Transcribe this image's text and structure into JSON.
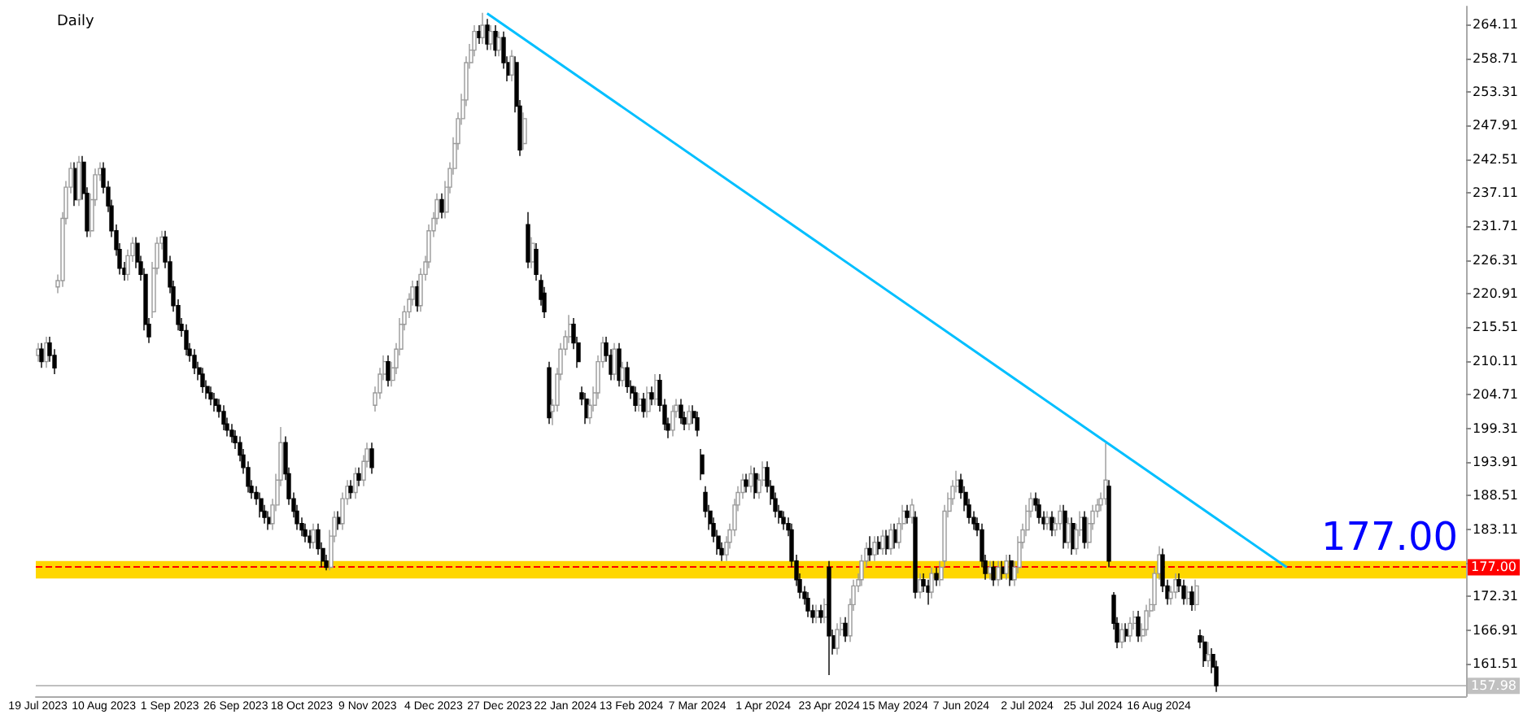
{
  "chart_data": {
    "type": "candlestick",
    "title": "Daily",
    "categories": [
      "19 Jul 2023",
      null,
      null,
      null,
      null,
      null,
      null,
      null,
      null,
      null,
      null,
      null,
      null,
      null,
      null,
      null,
      "10 Aug 2023",
      null,
      null,
      null,
      null,
      null,
      null,
      null,
      null,
      null,
      null,
      null,
      null,
      null,
      null,
      null,
      "1 Sep 2023",
      null,
      null,
      null,
      null,
      null,
      null,
      null,
      null,
      null,
      null,
      null,
      null,
      null,
      null,
      null,
      "26 Sep 2023",
      null,
      null,
      null,
      null,
      null,
      null,
      null,
      null,
      null,
      null,
      null,
      null,
      null,
      null,
      null,
      "18 Oct 2023",
      null,
      null,
      null,
      null,
      null,
      null,
      null,
      null,
      null,
      null,
      null,
      null,
      null,
      null,
      null,
      "9 Nov 2023",
      null,
      null,
      null,
      null,
      null,
      null,
      null,
      null,
      null,
      null,
      null,
      null,
      null,
      null,
      null,
      "4 Dec 2023",
      null,
      null,
      null,
      null,
      null,
      null,
      null,
      null,
      null,
      null,
      null,
      null,
      null,
      null,
      null,
      "27 Dec 2023",
      null,
      null,
      null,
      null,
      null,
      null,
      null,
      null,
      null,
      null,
      null,
      null,
      null,
      null,
      null,
      "22 Jan 2024",
      null,
      null,
      null,
      null,
      null,
      null,
      null,
      null,
      null,
      null,
      null,
      null,
      null,
      null,
      null,
      "13 Feb 2024",
      null,
      null,
      null,
      null,
      null,
      null,
      null,
      null,
      null,
      null,
      null,
      null,
      null,
      null,
      null,
      "7 Mar 2024",
      null,
      null,
      null,
      null,
      null,
      null,
      null,
      null,
      null,
      null,
      null,
      null,
      null,
      null,
      null,
      "1 Apr 2024",
      null,
      null,
      null,
      null,
      null,
      null,
      null,
      null,
      null,
      null,
      null,
      null,
      null,
      null,
      null,
      "23 Apr 2024",
      null,
      null,
      null,
      null,
      null,
      null,
      null,
      null,
      null,
      null,
      null,
      null,
      null,
      null,
      null,
      "15 May 2024",
      null,
      null,
      null,
      null,
      null,
      null,
      null,
      null,
      null,
      null,
      null,
      null,
      null,
      null,
      null,
      "7 Jun 2024",
      null,
      null,
      null,
      null,
      null,
      null,
      null,
      null,
      null,
      null,
      null,
      null,
      null,
      null,
      null,
      "2 Jul 2024",
      null,
      null,
      null,
      null,
      null,
      null,
      null,
      null,
      null,
      null,
      null,
      null,
      null,
      null,
      null,
      "25 Jul 2024",
      null,
      null,
      null,
      null,
      null,
      null,
      null,
      null,
      null,
      null,
      null,
      null,
      null,
      null,
      null,
      "16 Aug 2024",
      null,
      null,
      null,
      null,
      null,
      null,
      null,
      null,
      null,
      null,
      null,
      null,
      null,
      null,
      null,
      null,
      null,
      null,
      null,
      null,
      null,
      null,
      null,
      null,
      null,
      null,
      null,
      null,
      null,
      null,
      null,
      null,
      null,
      null,
      null,
      null,
      null,
      null,
      null,
      null,
      null,
      null,
      null,
      null,
      null,
      null,
      null,
      null,
      null,
      null,
      null,
      null,
      null,
      null,
      null,
      null,
      null,
      null,
      null,
      null,
      null,
      null,
      null,
      null,
      null,
      null,
      null,
      null,
      null,
      null,
      null,
      null,
      null,
      null
    ],
    "ohlc": [
      [
        211,
        213,
        210,
        212
      ],
      [
        212,
        213,
        209,
        210
      ],
      [
        210,
        214,
        209,
        213
      ],
      [
        213,
        214,
        210,
        211
      ],
      [
        211,
        212,
        208,
        209
      ],
      [
        222,
        224,
        221,
        223
      ],
      [
        223,
        234,
        222,
        233
      ],
      [
        233,
        239,
        232,
        238
      ],
      [
        238,
        242,
        237,
        241
      ],
      [
        241,
        242,
        235,
        236
      ],
      [
        236,
        243,
        235,
        242
      ],
      [
        242,
        243,
        236,
        237
      ],
      [
        237,
        238,
        230,
        231
      ],
      [
        231,
        237,
        230,
        236
      ],
      [
        236,
        241,
        235,
        240
      ],
      [
        240,
        242,
        239,
        241
      ],
      [
        241,
        242,
        237,
        238
      ],
      [
        238,
        239,
        234,
        235
      ],
      [
        235,
        236,
        230,
        231
      ],
      [
        231,
        232,
        227,
        228
      ],
      [
        228,
        229,
        224,
        225
      ],
      [
        225,
        226,
        223,
        224
      ],
      [
        224,
        228,
        223,
        227
      ],
      [
        227,
        230,
        226,
        229
      ],
      [
        229,
        230,
        225,
        226
      ],
      [
        226,
        227,
        223,
        224
      ],
      [
        224,
        225,
        215,
        216
      ],
      [
        216,
        217,
        213,
        214
      ],
      [
        218,
        226,
        217,
        225
      ],
      [
        225,
        230,
        224,
        229
      ],
      [
        229,
        231,
        228,
        230
      ],
      [
        230,
        231,
        225,
        226
      ],
      [
        226,
        227,
        221,
        222
      ],
      [
        222,
        223,
        218,
        219
      ],
      [
        219,
        220,
        215,
        216
      ],
      [
        216,
        217,
        214,
        215
      ],
      [
        215,
        216,
        211,
        212
      ],
      [
        212,
        213,
        210,
        211
      ],
      [
        211,
        212,
        208,
        209
      ],
      [
        209,
        210,
        207,
        208
      ],
      [
        208,
        209,
        205,
        206
      ],
      [
        206,
        207,
        204,
        205
      ],
      [
        205,
        206,
        203,
        204
      ],
      [
        204,
        205,
        202,
        203
      ],
      [
        203,
        204,
        201,
        202
      ],
      [
        202,
        203,
        199,
        200
      ],
      [
        200,
        201,
        198,
        199
      ],
      [
        199,
        200,
        197,
        198
      ],
      [
        198,
        199,
        196,
        197
      ],
      [
        197,
        198,
        194,
        195
      ],
      [
        195,
        196,
        192,
        193
      ],
      [
        193,
        194,
        189,
        190
      ],
      [
        190,
        191,
        188,
        189
      ],
      [
        189,
        190,
        187,
        188
      ],
      [
        188,
        189,
        185,
        186
      ],
      [
        186,
        187,
        184,
        185
      ],
      [
        185,
        186,
        183,
        184
      ],
      [
        184,
        188,
        183,
        187
      ],
      [
        187,
        192,
        186,
        191
      ],
      [
        191,
        199.5,
        190,
        197
      ],
      [
        197,
        198,
        191,
        192
      ],
      [
        192,
        193,
        187,
        188
      ],
      [
        188,
        189,
        185,
        186
      ],
      [
        186,
        187,
        183,
        184
      ],
      [
        184,
        185,
        182,
        183
      ],
      [
        183,
        184,
        181,
        182
      ],
      [
        182,
        183,
        180,
        181
      ],
      [
        181,
        184,
        180,
        183
      ],
      [
        183,
        184,
        179,
        180
      ],
      [
        180,
        181,
        177,
        178
      ],
      [
        178,
        179,
        176.5,
        177
      ],
      [
        177,
        183,
        176.5,
        182
      ],
      [
        182,
        186,
        181,
        185
      ],
      [
        185,
        186,
        183,
        184
      ],
      [
        184,
        189,
        183,
        188
      ],
      [
        188,
        191,
        187,
        190
      ],
      [
        190,
        191,
        188,
        189
      ],
      [
        189,
        193,
        188,
        192
      ],
      [
        192,
        193,
        190,
        191
      ],
      [
        191,
        195,
        190,
        194
      ],
      [
        194,
        197,
        193,
        196
      ],
      [
        196,
        197,
        192,
        193
      ],
      [
        203,
        206,
        202,
        205
      ],
      [
        205,
        209,
        204,
        208
      ],
      [
        208,
        211,
        207,
        210
      ],
      [
        210,
        211,
        206,
        207
      ],
      [
        207,
        210,
        206,
        209
      ],
      [
        209,
        213,
        208,
        212
      ],
      [
        212,
        217,
        211,
        216
      ],
      [
        216,
        219,
        215,
        218
      ],
      [
        218,
        221,
        217,
        220
      ],
      [
        220,
        223,
        219,
        222
      ],
      [
        222,
        223,
        218,
        219
      ],
      [
        219,
        225,
        218,
        224
      ],
      [
        224,
        227,
        223,
        226
      ],
      [
        226,
        232,
        225,
        231
      ],
      [
        231,
        234,
        230,
        233
      ],
      [
        233,
        237,
        232,
        236
      ],
      [
        236,
        237,
        233,
        234
      ],
      [
        234,
        239,
        233,
        238
      ],
      [
        238,
        242,
        237,
        241
      ],
      [
        241,
        246,
        240,
        245
      ],
      [
        245,
        250,
        244,
        249
      ],
      [
        249,
        253,
        248,
        252
      ],
      [
        252,
        259,
        251,
        258
      ],
      [
        258,
        261,
        257,
        260
      ],
      [
        260,
        264,
        259,
        263
      ],
      [
        263,
        264,
        261,
        262
      ],
      [
        262,
        266,
        261,
        264
      ],
      [
        264,
        265,
        260,
        261
      ],
      [
        261,
        264,
        260,
        263
      ],
      [
        263,
        264,
        259,
        260
      ],
      [
        260,
        263,
        259,
        262
      ],
      [
        262,
        263,
        257,
        258
      ],
      [
        258,
        259,
        255,
        256
      ],
      [
        256,
        260,
        255,
        259
      ],
      [
        258,
        259,
        250,
        251
      ],
      [
        251,
        252,
        243,
        244
      ],
      [
        245,
        250,
        244,
        249
      ],
      [
        232,
        234,
        225,
        226
      ],
      [
        226,
        230,
        225,
        229
      ],
      [
        228,
        229,
        223,
        224
      ],
      [
        223,
        224,
        219,
        220
      ],
      [
        221,
        222,
        217,
        218
      ],
      [
        209,
        210,
        200,
        201
      ],
      [
        202,
        204,
        199.8,
        203
      ],
      [
        203,
        209,
        202,
        208
      ],
      [
        208,
        213,
        207,
        212
      ],
      [
        212,
        215,
        211,
        214
      ],
      [
        214,
        217.5,
        213,
        216
      ],
      [
        216,
        217,
        212,
        213
      ],
      [
        213,
        214,
        209,
        210
      ],
      [
        205,
        206,
        203,
        204
      ],
      [
        204,
        205,
        200,
        201
      ],
      [
        201,
        204,
        200,
        203
      ],
      [
        203,
        206,
        202,
        205
      ],
      [
        205,
        211,
        204,
        210
      ],
      [
        210,
        214,
        209,
        213
      ],
      [
        213,
        214,
        210,
        211
      ],
      [
        211,
        212,
        207,
        208
      ],
      [
        208,
        213,
        207,
        212
      ],
      [
        212,
        213,
        206,
        207
      ],
      [
        207,
        210,
        206,
        209
      ],
      [
        209,
        210,
        205,
        206
      ],
      [
        206,
        207,
        204,
        205
      ],
      [
        205,
        206,
        202,
        203
      ],
      [
        203,
        205,
        202,
        204
      ],
      [
        204,
        205,
        201,
        202
      ],
      [
        202,
        206,
        201,
        205
      ],
      [
        205,
        206,
        203,
        204
      ],
      [
        204,
        208,
        203,
        207
      ],
      [
        207,
        208,
        202,
        203
      ],
      [
        203,
        204,
        199,
        200
      ],
      [
        200,
        201,
        197.7,
        199
      ],
      [
        199,
        203,
        198,
        202
      ],
      [
        202,
        204,
        201,
        203
      ],
      [
        203,
        204,
        200,
        201
      ],
      [
        201,
        202,
        199,
        200
      ],
      [
        200,
        203,
        199,
        202
      ],
      [
        202,
        203,
        200,
        201
      ],
      [
        201,
        202,
        198,
        199
      ],
      [
        195,
        196,
        191,
        192
      ],
      [
        189,
        190,
        185,
        186
      ],
      [
        186,
        187,
        183,
        184
      ],
      [
        184,
        185,
        181,
        182
      ],
      [
        182,
        183,
        179,
        180
      ],
      [
        180,
        181,
        178,
        179
      ],
      [
        179,
        182,
        178,
        181
      ],
      [
        181,
        184,
        180,
        183
      ],
      [
        183,
        188,
        182,
        187
      ],
      [
        187,
        190,
        186,
        189
      ],
      [
        189,
        192,
        188,
        191
      ],
      [
        191,
        192,
        189,
        190
      ],
      [
        190,
        193.3,
        189,
        192
      ],
      [
        192,
        193,
        188,
        189
      ],
      [
        189,
        192,
        188,
        191
      ],
      [
        191,
        194,
        190,
        193
      ],
      [
        193,
        194,
        189,
        190
      ],
      [
        190,
        191,
        187,
        188
      ],
      [
        188,
        189,
        185,
        186
      ],
      [
        186,
        187,
        184,
        185
      ],
      [
        185,
        186,
        183,
        184
      ],
      [
        184,
        185,
        182,
        183
      ],
      [
        183,
        184,
        177,
        178
      ],
      [
        178,
        179,
        174,
        175
      ],
      [
        175,
        176,
        172,
        173
      ],
      [
        173,
        174,
        171,
        172
      ],
      [
        172,
        173,
        169,
        170
      ],
      [
        170,
        171,
        168,
        169
      ],
      [
        169,
        171,
        168,
        170
      ],
      [
        170,
        171,
        168,
        169
      ],
      [
        169,
        172,
        168,
        171
      ],
      [
        177,
        178,
        159.7,
        166
      ],
      [
        166,
        167,
        163,
        164
      ],
      [
        164,
        168,
        163,
        167
      ],
      [
        167,
        169,
        166,
        168
      ],
      [
        168,
        169,
        165,
        166
      ],
      [
        166,
        172,
        165,
        171
      ],
      [
        171,
        175,
        170,
        174
      ],
      [
        174,
        176,
        173,
        175
      ],
      [
        175,
        179,
        174,
        178
      ],
      [
        178,
        181,
        177,
        180
      ],
      [
        180,
        182,
        178,
        179
      ],
      [
        179,
        182,
        178,
        181
      ],
      [
        181,
        182,
        179,
        180
      ],
      [
        180,
        183,
        179,
        182
      ],
      [
        182,
        183,
        179,
        180
      ],
      [
        180,
        184,
        179,
        183
      ],
      [
        183,
        184,
        180,
        181
      ],
      [
        181,
        185,
        180,
        184
      ],
      [
        184,
        187,
        183,
        186
      ],
      [
        186,
        187,
        184,
        185
      ],
      [
        185,
        188,
        184,
        187
      ],
      [
        185,
        186,
        172,
        173
      ],
      [
        173,
        176,
        172,
        175
      ],
      [
        175,
        176,
        173,
        174
      ],
      [
        174,
        175,
        171,
        173
      ],
      [
        173,
        177,
        172,
        176
      ],
      [
        176,
        177,
        174,
        175
      ],
      [
        175,
        178,
        174,
        177
      ],
      [
        178,
        187,
        177,
        186
      ],
      [
        186,
        189,
        185,
        188
      ],
      [
        188,
        191,
        187,
        190
      ],
      [
        190,
        192.5,
        189,
        191
      ],
      [
        191,
        192,
        188,
        189
      ],
      [
        189,
        190,
        186,
        187
      ],
      [
        187,
        188,
        184,
        185
      ],
      [
        185,
        186,
        183,
        184
      ],
      [
        184,
        185,
        182,
        183
      ],
      [
        183,
        184,
        177,
        178
      ],
      [
        178,
        179,
        175,
        176
      ],
      [
        176,
        178,
        175,
        177
      ],
      [
        177,
        178,
        174,
        175
      ],
      [
        175,
        178,
        174,
        177
      ],
      [
        177,
        178,
        175,
        176
      ],
      [
        176,
        179,
        175,
        178
      ],
      [
        178,
        179,
        174,
        175
      ],
      [
        175,
        178,
        174,
        177
      ],
      [
        177,
        182,
        176,
        181
      ],
      [
        181,
        184,
        180,
        183
      ],
      [
        183,
        187,
        182,
        186
      ],
      [
        186,
        189,
        185,
        188
      ],
      [
        188,
        189,
        186,
        187
      ],
      [
        187,
        188,
        184,
        185
      ],
      [
        185,
        186,
        183,
        184
      ],
      [
        184,
        186,
        183,
        185
      ],
      [
        185,
        186,
        182,
        183
      ],
      [
        183,
        185,
        182,
        184
      ],
      [
        184,
        187,
        183,
        186
      ],
      [
        186,
        187,
        180,
        181
      ],
      [
        181,
        185,
        180,
        184
      ],
      [
        184,
        185,
        179,
        180
      ],
      [
        180,
        184,
        179,
        183
      ],
      [
        183,
        186,
        182,
        185
      ],
      [
        185,
        186,
        180,
        181
      ],
      [
        181,
        185,
        180,
        184
      ],
      [
        184,
        187,
        183,
        186
      ],
      [
        186,
        188,
        185,
        187
      ],
      [
        187,
        189,
        186,
        188
      ],
      [
        188,
        196.9,
        187,
        191
      ],
      [
        190,
        191,
        177,
        178
      ],
      [
        172.5,
        173,
        167,
        168
      ],
      [
        168,
        169,
        164,
        165
      ],
      [
        165,
        168,
        164,
        167
      ],
      [
        167,
        168,
        165,
        166
      ],
      [
        166,
        169,
        165,
        168
      ],
      [
        168,
        170,
        167,
        169
      ],
      [
        169,
        170,
        165,
        166
      ],
      [
        166,
        168,
        165,
        167
      ],
      [
        167,
        171,
        166,
        170
      ],
      [
        170,
        172,
        169,
        171
      ],
      [
        171,
        177,
        170,
        176
      ],
      [
        176,
        180.4,
        175,
        179
      ],
      [
        179,
        180,
        173,
        174
      ],
      [
        174,
        175,
        171,
        172
      ],
      [
        172,
        174,
        171,
        173
      ],
      [
        173,
        176,
        172,
        175
      ],
      [
        175,
        176,
        173,
        174
      ],
      [
        174,
        175,
        171,
        172
      ],
      [
        172,
        174,
        171,
        173
      ],
      [
        173,
        174,
        170,
        171
      ],
      [
        171,
        175,
        170,
        174
      ],
      [
        166,
        167,
        164,
        165
      ],
      [
        165,
        166,
        161,
        162
      ],
      [
        162,
        165,
        161,
        163
      ],
      [
        163,
        164,
        160,
        161
      ],
      [
        161,
        162,
        157,
        157.98
      ],
      null,
      null,
      null,
      null,
      null,
      null,
      null,
      null,
      null,
      null,
      null,
      null,
      null,
      null,
      null,
      null,
      null,
      null,
      null,
      null,
      null,
      null,
      null,
      null,
      null,
      null,
      null,
      null,
      null,
      null,
      null,
      null,
      null,
      null,
      null,
      null,
      null,
      null,
      null,
      null,
      null,
      null,
      null,
      null,
      null,
      null,
      null,
      null,
      null,
      null,
      null,
      null,
      null,
      null,
      null,
      null,
      null,
      null,
      null,
      null
    ],
    "series": [
      {
        "type": "line",
        "color": "#00bfff",
        "values": [
          null,
          null,
          null,
          null,
          null,
          null,
          null,
          null,
          null,
          null,
          null,
          null,
          null,
          null,
          null,
          null,
          null,
          null,
          null,
          null,
          null,
          null,
          null,
          null,
          null,
          null,
          null,
          null,
          null,
          null,
          null,
          null,
          null,
          null,
          null,
          null,
          null,
          null,
          null,
          null,
          null,
          null,
          null,
          null,
          null,
          null,
          null,
          null,
          null,
          null,
          null,
          null,
          null,
          null,
          null,
          null,
          null,
          null,
          null,
          null,
          null,
          null,
          null,
          null,
          null,
          null,
          null,
          null,
          null,
          null,
          null,
          null,
          null,
          null,
          null,
          null,
          null,
          null,
          null,
          null,
          null,
          null,
          null,
          null,
          null,
          null,
          null,
          null,
          null,
          null,
          null,
          null,
          null,
          null,
          null,
          null,
          null,
          null,
          null,
          null,
          null,
          null,
          null,
          null,
          null,
          null,
          null,
          null,
          null,
          265.9,
          null,
          null,
          null,
          null,
          null,
          null,
          null,
          null,
          null,
          null,
          null,
          null,
          null,
          null,
          null,
          null,
          null,
          null,
          null,
          null,
          null,
          null,
          null,
          null,
          null,
          null,
          null,
          null,
          null,
          null,
          null,
          null,
          null,
          null,
          null,
          null,
          null,
          null,
          null,
          null,
          null,
          null,
          null,
          null,
          null,
          null,
          null,
          null,
          null,
          null,
          null,
          null,
          null,
          null,
          null,
          null,
          null,
          null,
          null,
          null,
          null,
          null,
          null,
          null,
          null,
          null,
          null,
          null,
          null,
          null,
          null,
          null,
          null,
          null,
          null,
          null,
          null,
          null,
          null,
          null,
          null,
          null,
          null,
          null,
          null,
          null,
          null,
          null,
          null,
          null,
          null,
          null,
          null,
          null,
          null,
          null,
          null,
          null,
          null,
          null,
          null,
          null,
          null,
          null,
          null,
          null,
          null,
          null,
          null,
          null,
          null,
          null,
          null,
          null,
          null,
          null,
          null,
          null,
          null,
          null,
          null,
          null,
          null,
          null,
          null,
          null,
          null,
          null,
          null,
          null,
          null,
          null,
          null,
          null,
          null,
          null,
          null,
          null,
          null,
          null,
          null,
          null,
          null,
          null,
          null,
          null,
          null,
          null,
          null,
          null,
          null,
          null,
          null,
          null,
          null,
          null,
          null,
          null,
          null,
          null,
          null,
          null,
          null,
          null,
          null,
          null,
          null,
          null,
          null,
          null,
          null,
          null,
          null,
          null,
          null,
          null,
          null,
          null,
          null,
          null,
          null,
          null,
          null,
          null,
          null,
          null,
          null,
          null,
          null,
          null,
          null,
          null,
          null,
          177,
          null,
          null,
          null,
          null,
          null,
          null,
          null,
          null,
          null,
          null,
          null,
          null,
          null,
          null,
          null,
          null,
          null,
          null,
          null,
          null,
          null,
          null,
          null,
          null,
          null,
          null,
          null,
          null,
          null,
          null,
          null,
          null,
          null,
          null,
          null,
          null,
          null,
          null,
          null,
          null,
          null,
          null,
          null
        ]
      }
    ],
    "ylim": [
      156.3,
      267.0
    ],
    "yticks": [
      161.51,
      166.91,
      172.31,
      {
        "value": 177.71,
        "label": null
      },
      183.11,
      188.51,
      193.91,
      199.31,
      204.71,
      210.11,
      215.51,
      220.91,
      226.31,
      231.71,
      237.11,
      242.51,
      247.91,
      253.31,
      258.71,
      264.11
    ],
    "bands": [
      {
        "axis": "y",
        "from": 175.2,
        "to": 178.0,
        "color": "#ffd700"
      }
    ],
    "ref_lines": [
      {
        "axis": "y",
        "value": 177,
        "label": "177.00",
        "color": "#ff0000",
        "line_style": "dashed"
      },
      {
        "axis": "y",
        "value": 157.98,
        "label": "157.98",
        "color": "#c0c0c0",
        "line_style": "solid"
      }
    ],
    "annotations": [
      "177.00"
    ],
    "grid": false
  }
}
